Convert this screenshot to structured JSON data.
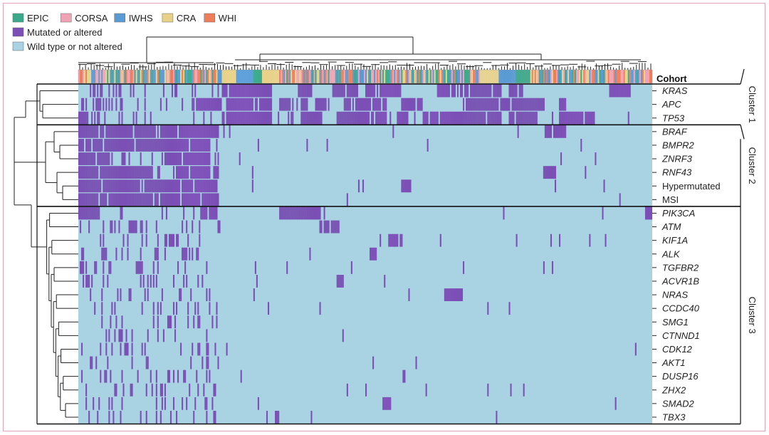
{
  "chart_data": {
    "type": "heatmap",
    "title": "",
    "legend": {
      "placement": "top-left",
      "cohorts": [
        {
          "name": "EPIC",
          "color": "#3aa88a"
        },
        {
          "name": "CORSA",
          "color": "#f0a3b5"
        },
        {
          "name": "IWHS",
          "color": "#5b9bd5"
        },
        {
          "name": "CRA",
          "color": "#e8d28a"
        },
        {
          "name": "WHI",
          "color": "#ef7d5a"
        }
      ],
      "states": [
        {
          "name": "Mutated or altered",
          "color": "#7b4fb5"
        },
        {
          "name": "Wild type or not altered",
          "color": "#a9d2e3"
        }
      ]
    },
    "cohort_row_label": "Cohort",
    "rows": [
      "KRAS",
      "APC",
      "TP53",
      "BRAF",
      "BMPR2",
      "ZNRF3",
      "RNF43",
      "Hypermutated",
      "MSI",
      "PIK3CA",
      "ATM",
      "KIF1A",
      "ALK",
      "TGFBR2",
      "ACVR1B",
      "NRAS",
      "CCDC40",
      "SMG1",
      "CTNND1",
      "CDK12",
      "AKT1",
      "DUSP16",
      "ZHX2",
      "SMAD2",
      "TBX3"
    ],
    "italic_rows": [
      "KRAS",
      "APC",
      "TP53",
      "BRAF",
      "BMPR2",
      "ZNRF3",
      "RNF43",
      "PIK3CA",
      "ATM",
      "KIF1A",
      "ALK",
      "TGFBR2",
      "ACVR1B",
      "NRAS",
      "CCDC40",
      "SMG1",
      "CTNND1",
      "CDK12",
      "AKT1",
      "DUSP16",
      "ZHX2",
      "SMAD2",
      "TBX3"
    ],
    "clusters": [
      {
        "label": "Cluster 1",
        "rows": [
          "KRAS",
          "APC",
          "TP53"
        ]
      },
      {
        "label": "Cluster 2",
        "rows": [
          "BRAF",
          "BMPR2",
          "ZNRF3",
          "RNF43",
          "Hypermutated",
          "MSI"
        ]
      },
      {
        "label": "Cluster 3",
        "rows": [
          "PIK3CA",
          "ATM",
          "KIF1A",
          "ALK",
          "TGFBR2",
          "ACVR1B",
          "NRAS",
          "CCDC40",
          "SMG1",
          "CTNND1",
          "CDK12",
          "AKT1",
          "DUSP16",
          "ZHX2",
          "SMAD2",
          "TBX3"
        ]
      }
    ],
    "sample_columns": 400,
    "x_range": [
      0,
      400
    ],
    "grid": false,
    "blocks": {
      "KRAS": [
        [
          100,
          135
        ],
        [
          153,
          163
        ],
        [
          177,
          195
        ],
        [
          200,
          225
        ],
        [
          250,
          295
        ],
        [
          300,
          310
        ],
        [
          370,
          385
        ]
      ],
      "APC": [
        [
          80,
          100
        ],
        [
          100,
          135
        ],
        [
          140,
          150
        ],
        [
          155,
          160
        ],
        [
          165,
          175
        ],
        [
          185,
          215
        ],
        [
          225,
          240
        ],
        [
          270,
          325
        ],
        [
          335,
          340
        ]
      ],
      "TP53": [
        [
          0,
          5
        ],
        [
          100,
          135
        ],
        [
          145,
          150
        ],
        [
          155,
          170
        ],
        [
          180,
          215
        ],
        [
          222,
          230
        ],
        [
          240,
          295
        ],
        [
          300,
          320
        ],
        [
          335,
          360
        ]
      ],
      "BRAF": [
        [
          0,
          98
        ],
        [
          325,
          340
        ]
      ],
      "BMPR2": [
        [
          0,
          92
        ]
      ],
      "ZNRF3": [
        [
          0,
          22
        ],
        [
          60,
          92
        ]
      ],
      "RNF43": [
        [
          0,
          52
        ],
        [
          68,
          98
        ],
        [
          324,
          333
        ]
      ],
      "Hypermutated": [
        [
          0,
          98
        ],
        [
          225,
          232
        ]
      ],
      "MSI": [
        [
          0,
          98
        ]
      ],
      "PIK3CA": [
        [
          0,
          15
        ],
        [
          85,
          98
        ],
        [
          140,
          172
        ],
        [
          395,
          400
        ]
      ],
      "ATM": [
        [
          35,
          42
        ],
        [
          168,
          182
        ]
      ],
      "KIF1A": [
        [
          60,
          70
        ],
        [
          216,
          226
        ]
      ],
      "ALK": [
        [
          72,
          78
        ],
        [
          203,
          208
        ]
      ],
      "TGFBR2": [
        [
          40,
          45
        ]
      ],
      "ACVR1B": [
        [
          180,
          185
        ]
      ],
      "NRAS": [
        [
          255,
          268
        ]
      ],
      "CCDC40": [],
      "SMG1": [],
      "CTNND1": [],
      "CDK12": [],
      "AKT1": [],
      "DUSP16": [],
      "ZHX2": [],
      "SMAD2": [
        [
          212,
          218
        ]
      ],
      "TBX3": [
        [
          137,
          140
        ]
      ]
    },
    "cohort_segments": [
      {
        "from": 0,
        "to": 100,
        "cohort": "mixed"
      },
      {
        "from": 100,
        "to": 110,
        "cohort": "CRA"
      },
      {
        "from": 110,
        "to": 122,
        "cohort": "IWHS"
      },
      {
        "from": 122,
        "to": 128,
        "cohort": "EPIC"
      },
      {
        "from": 128,
        "to": 140,
        "cohort": "CRA"
      },
      {
        "from": 140,
        "to": 280,
        "cohort": "mixed"
      },
      {
        "from": 280,
        "to": 293,
        "cohort": "CRA"
      },
      {
        "from": 293,
        "to": 305,
        "cohort": "IWHS"
      },
      {
        "from": 305,
        "to": 315,
        "cohort": "EPIC"
      },
      {
        "from": 315,
        "to": 400,
        "cohort": "mixed"
      }
    ]
  }
}
